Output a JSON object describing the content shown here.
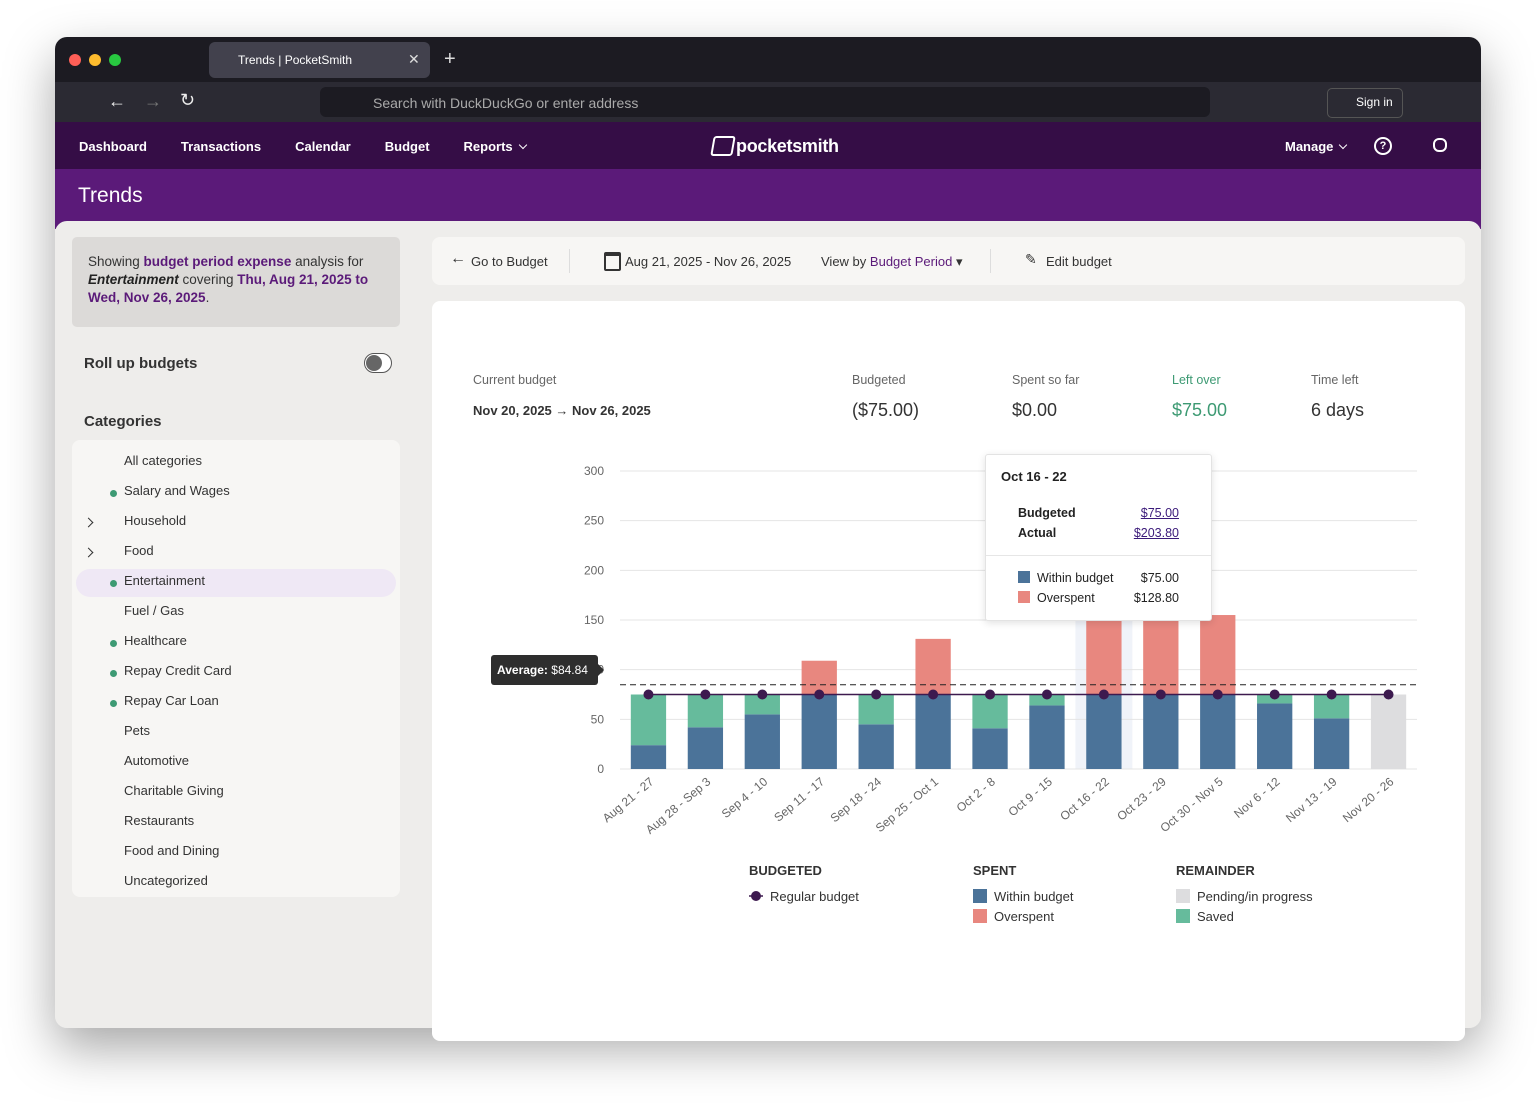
{
  "browser": {
    "tab_title": "Trends | PocketSmith",
    "address_placeholder": "Search with DuckDuckGo or enter address",
    "sign_in": "Sign in"
  },
  "nav": {
    "items": [
      "Dashboard",
      "Transactions",
      "Calendar",
      "Budget",
      "Reports"
    ],
    "logo": "pocketsmith",
    "manage": "Manage"
  },
  "page_title": "Trends",
  "summary": {
    "segments": [
      {
        "text": "Showing ",
        "style": "plain"
      },
      {
        "text": "budget period expense",
        "style": "accent"
      },
      {
        "text": " analysis for ",
        "style": "plain"
      },
      {
        "text": "Entertainment",
        "style": "emphasis"
      },
      {
        "text": " covering ",
        "style": "plain"
      },
      {
        "text": "Thu, Aug 21, 2025 to Wed, Nov 26, 2025",
        "style": "accent"
      },
      {
        "text": ".",
        "style": "plain"
      }
    ]
  },
  "roll_up": {
    "label": "Roll up budgets",
    "enabled": false
  },
  "categories": {
    "title": "Categories",
    "items": [
      {
        "label": "All categories"
      },
      {
        "label": "Salary and Wages",
        "dot": true
      },
      {
        "label": "Household",
        "expandable": true
      },
      {
        "label": "Food",
        "expandable": true
      },
      {
        "label": "Entertainment",
        "dot": true,
        "selected": true
      },
      {
        "label": "Fuel / Gas"
      },
      {
        "label": "Healthcare",
        "dot": true
      },
      {
        "label": "Repay Credit Card",
        "dot": true
      },
      {
        "label": "Repay Car Loan",
        "dot": true
      },
      {
        "label": "Pets"
      },
      {
        "label": "Automotive"
      },
      {
        "label": "Charitable Giving"
      },
      {
        "label": "Restaurants"
      },
      {
        "label": "Food and Dining"
      },
      {
        "label": "Uncategorized"
      }
    ]
  },
  "toolbar": {
    "back": "Go to Budget",
    "date_range": "Aug 21, 2025 - Nov 26, 2025",
    "view_by": "View by",
    "view_by_value": "Budget Period",
    "edit": "Edit budget"
  },
  "stats": [
    {
      "label": "Current budget",
      "value": "Nov 20, 2025 → Nov 26, 2025"
    },
    {
      "label": "Budgeted",
      "value": "($75.00)"
    },
    {
      "label": "Spent so far",
      "value": "$0.00"
    },
    {
      "label": "Left over",
      "value": "$75.00",
      "highlight": true
    },
    {
      "label": "Time left",
      "value": "6 days"
    }
  ],
  "chart_data": {
    "type": "bar",
    "stacked": true,
    "grid": true,
    "categories": [
      "Aug 21 - 27",
      "Aug 28 - Sep 3",
      "Sep 4 - 10",
      "Sep 11 - 17",
      "Sep 18 - 24",
      "Sep 25 - Oct 1",
      "Oct 2 - 8",
      "Oct 9 - 15",
      "Oct 16 - 22",
      "Oct 23 - 29",
      "Oct 30 - Nov 5",
      "Nov 6 - 12",
      "Nov 13 - 19",
      "Nov 20 - 26"
    ],
    "series": [
      {
        "name": "Regular budget",
        "type": "line",
        "color": "#3d1a4f",
        "values": [
          75,
          75,
          75,
          75,
          75,
          75,
          75,
          75,
          75,
          75,
          75,
          75,
          75,
          75
        ]
      },
      {
        "name": "Within budget",
        "color": "#4b7399",
        "values": [
          24,
          42,
          55,
          75,
          45,
          75,
          41,
          64,
          75,
          75,
          75,
          66,
          51,
          null
        ]
      },
      {
        "name": "Overspent",
        "color": "#e8877f",
        "values": [
          null,
          null,
          null,
          34,
          null,
          56,
          null,
          null,
          128.8,
          90,
          80,
          null,
          null,
          null
        ]
      },
      {
        "name": "Pending/in progress",
        "color": "#dddddf",
        "values": [
          null,
          null,
          null,
          null,
          null,
          null,
          null,
          null,
          null,
          null,
          null,
          null,
          null,
          75
        ]
      },
      {
        "name": "Saved",
        "color": "#66bb9c",
        "values": [
          51,
          33,
          20,
          null,
          30,
          null,
          34,
          11,
          null,
          null,
          null,
          9,
          24,
          null
        ]
      }
    ],
    "ylim": [
      0,
      300
    ],
    "yticks": [
      0,
      50,
      100,
      150,
      200,
      250,
      300
    ],
    "average": {
      "label": "Average:",
      "value": 84.84,
      "value_label": "$84.84"
    },
    "legend_groups": [
      "BUDGETED",
      "SPENT",
      "REMAINDER"
    ],
    "tooltip": {
      "title": "Oct 16 - 22",
      "rows": [
        {
          "label": "Budgeted",
          "value": "$75.00"
        },
        {
          "label": "Actual",
          "value": "$203.80"
        }
      ],
      "breakdown": [
        {
          "label": "Within budget",
          "value": "$75.00"
        },
        {
          "label": "Overspent",
          "value": "$128.80"
        }
      ]
    }
  }
}
